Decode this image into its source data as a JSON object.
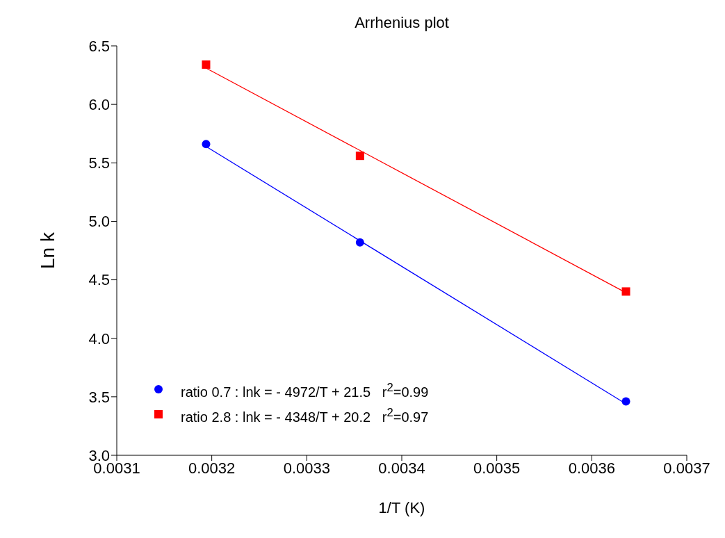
{
  "chart_data": {
    "type": "scatter",
    "title": "Arrhenius plot",
    "xlabel": "1/T (K)",
    "ylabel": "Ln k",
    "xlim": [
      0.0031,
      0.0037
    ],
    "xticks": [
      0.0031,
      0.0032,
      0.0033,
      0.0034,
      0.0035,
      0.0036,
      0.0037
    ],
    "ylim": [
      3,
      6.5
    ],
    "yticks": [
      {
        "value": 3,
        "label": "3.0"
      },
      {
        "value": 3.5,
        "label": "3.5"
      },
      {
        "value": 4,
        "label": "4.0"
      },
      {
        "value": 4.5,
        "label": "4.5"
      },
      {
        "value": 5,
        "label": "5.0"
      },
      {
        "value": 5.5,
        "label": "5.5"
      },
      {
        "value": 6,
        "label": "6.0"
      },
      {
        "value": 6.5,
        "label": "6.5"
      }
    ],
    "grid": false,
    "legend": "bottom left",
    "series": [
      {
        "name": "ratio 0.7 : lnk = - 4972/T + 21.5   r$^{2}$=0.99",
        "color": "#0000ff",
        "marker": "circle",
        "x": [
          0.003194,
          0.003356,
          0.003636
        ],
        "values": [
          5.66,
          4.82,
          3.46
        ]
      },
      {
        "name": "ratio 2.8 : lnk = - 4348/T + 20.2   r$^{2}$=0.97",
        "color": "#ff0000",
        "marker": "square",
        "x": [
          0.003194,
          0.003356,
          0.003636
        ],
        "values": [
          6.34,
          5.56,
          4.4
        ]
      },
      {
        "type": "line",
        "color": "#0000ff",
        "marker": "none",
        "x": [
          0.003194,
          0.003636
        ],
        "values": [
          5.64,
          3.44
        ]
      },
      {
        "type": "line",
        "color": "#ff0000",
        "marker": "none",
        "x": [
          0.003194,
          0.003636
        ],
        "values": [
          6.31,
          4.39
        ]
      }
    ]
  }
}
